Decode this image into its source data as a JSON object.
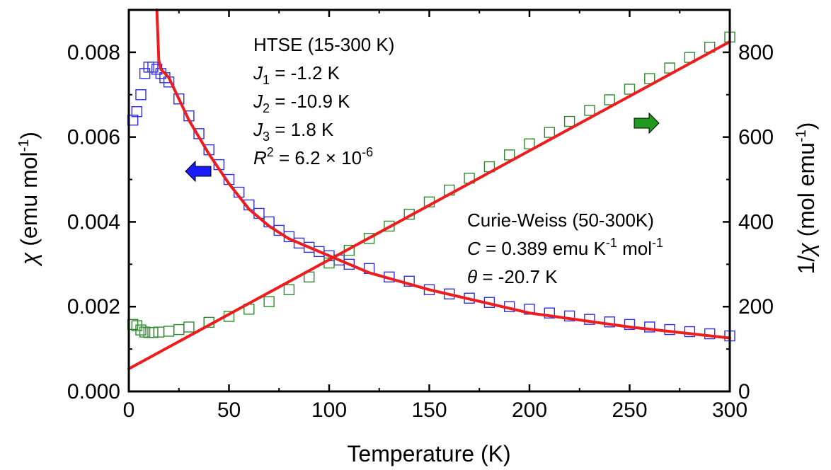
{
  "chart_data": {
    "type": "scatter",
    "x": {
      "label": "Temperature (K)",
      "range": [
        0,
        300
      ],
      "ticks": [
        "0",
        "50",
        "100",
        "150",
        "200",
        "250",
        "300"
      ]
    },
    "y_left": {
      "label_symbol": "χ",
      "label_unit_prefix": " (emu mol",
      "label_unit_exp": "-1",
      "label_unit_suffix": ")",
      "range": [
        0,
        0.009
      ],
      "ticks": [
        "0.000",
        "0.002",
        "0.004",
        "0.006",
        "0.008"
      ],
      "tick_values": [
        0,
        0.002,
        0.004,
        0.006,
        0.008
      ]
    },
    "y_right": {
      "label_prefix": "1/",
      "label_symbol": "χ",
      "label_unit_prefix": " (mol emu",
      "label_unit_exp": "-1",
      "label_unit_suffix": ")",
      "range": [
        0,
        900
      ],
      "ticks": [
        "0",
        "200",
        "400",
        "600",
        "800"
      ],
      "tick_values": [
        0,
        200,
        400,
        600,
        800
      ]
    },
    "series": [
      {
        "axis": "left",
        "marker": "open-square",
        "color": "#2f2fe0",
        "points": [
          [
            2,
            0.0064
          ],
          [
            4,
            0.0066
          ],
          [
            6,
            0.007
          ],
          [
            8,
            0.0075
          ],
          [
            10,
            0.00765
          ],
          [
            12,
            0.00765
          ],
          [
            14,
            0.0076
          ],
          [
            16,
            0.0075
          ],
          [
            18,
            0.0074
          ],
          [
            20,
            0.0073
          ],
          [
            25,
            0.0069
          ],
          [
            30,
            0.0065
          ],
          [
            35,
            0.00608
          ],
          [
            40,
            0.0057
          ],
          [
            45,
            0.00535
          ],
          [
            50,
            0.005
          ],
          [
            55,
            0.0047
          ],
          [
            60,
            0.0044
          ],
          [
            65,
            0.0042
          ],
          [
            70,
            0.004
          ],
          [
            75,
            0.0038
          ],
          [
            80,
            0.00365
          ],
          [
            85,
            0.0035
          ],
          [
            90,
            0.0034
          ],
          [
            95,
            0.0033
          ],
          [
            100,
            0.0032
          ],
          [
            105,
            0.0031
          ],
          [
            110,
            0.003
          ],
          [
            120,
            0.0029
          ],
          [
            130,
            0.0027
          ],
          [
            140,
            0.0026
          ],
          [
            150,
            0.0024
          ],
          [
            160,
            0.0023
          ],
          [
            170,
            0.0022
          ],
          [
            180,
            0.0021
          ],
          [
            190,
            0.002
          ],
          [
            200,
            0.00194
          ],
          [
            210,
            0.00185
          ],
          [
            220,
            0.00178
          ],
          [
            230,
            0.0017
          ],
          [
            240,
            0.00164
          ],
          [
            250,
            0.00158
          ],
          [
            260,
            0.00152
          ],
          [
            270,
            0.00146
          ],
          [
            280,
            0.00141
          ],
          [
            290,
            0.00136
          ],
          [
            300,
            0.00131
          ]
        ]
      },
      {
        "axis": "right",
        "marker": "open-square",
        "color": "#2e8b2e",
        "points": [
          [
            2,
            158
          ],
          [
            4,
            155
          ],
          [
            6,
            145
          ],
          [
            8,
            140
          ],
          [
            10,
            139
          ],
          [
            12,
            139
          ],
          [
            15,
            140
          ],
          [
            20,
            142
          ],
          [
            25,
            146
          ],
          [
            30,
            152
          ],
          [
            40,
            163
          ],
          [
            50,
            177
          ],
          [
            60,
            194
          ],
          [
            70,
            212
          ],
          [
            80,
            240
          ],
          [
            90,
            270
          ],
          [
            100,
            303
          ],
          [
            110,
            333
          ],
          [
            120,
            361
          ],
          [
            130,
            390
          ],
          [
            140,
            418
          ],
          [
            150,
            447
          ],
          [
            160,
            475
          ],
          [
            170,
            503
          ],
          [
            180,
            530
          ],
          [
            190,
            558
          ],
          [
            200,
            584
          ],
          [
            210,
            611
          ],
          [
            220,
            637
          ],
          [
            230,
            663
          ],
          [
            240,
            688
          ],
          [
            250,
            713
          ],
          [
            260,
            738
          ],
          [
            270,
            763
          ],
          [
            280,
            788
          ],
          [
            290,
            812
          ],
          [
            300,
            836
          ]
        ]
      },
      {
        "axis": "left",
        "style": "line",
        "color": "#ee1c1c",
        "points": [
          [
            14,
            0.0095
          ],
          [
            15,
            0.0078
          ],
          [
            16,
            0.0076
          ],
          [
            18,
            0.0075
          ],
          [
            20,
            0.0074
          ],
          [
            25,
            0.0069
          ],
          [
            30,
            0.0064
          ],
          [
            40,
            0.0056
          ],
          [
            50,
            0.0049
          ],
          [
            60,
            0.0043
          ],
          [
            70,
            0.0039
          ],
          [
            80,
            0.0036
          ],
          [
            90,
            0.0034
          ],
          [
            100,
            0.0032
          ],
          [
            120,
            0.0028
          ],
          [
            150,
            0.0024
          ],
          [
            200,
            0.00185
          ],
          [
            250,
            0.00152
          ],
          [
            300,
            0.00126
          ]
        ]
      },
      {
        "axis": "right",
        "style": "line",
        "color": "#ee1c1c",
        "points": [
          [
            0,
            53.5
          ],
          [
            300,
            825
          ]
        ]
      }
    ],
    "annotations": {
      "htse": {
        "title": "HTSE (15-300 K)",
        "j1_var": "J",
        "j1_sub": "1",
        "j1_val": " = -1.2 K",
        "j2_var": "J",
        "j2_sub": "2",
        "j2_val": " = -10.9 K",
        "j3_var": "J",
        "j3_sub": "3",
        "j3_val": " = 1.8 K",
        "r2_var": "R",
        "r2_sup": "2",
        "r2_val": " = 6.2 × 10",
        "r2_exp": "-6"
      },
      "cw": {
        "title": "Curie-Weiss (50-300K)",
        "c_var": "C",
        "c_val1": " = 0.389 emu K",
        "c_exp1": "-1",
        "c_val2": " mol",
        "c_exp2": "-1",
        "theta_var": "θ",
        "theta_val": " = -20.7 K"
      }
    },
    "arrows": {
      "left_color": "#1a1aff",
      "right_color": "#1f9a1f"
    }
  }
}
